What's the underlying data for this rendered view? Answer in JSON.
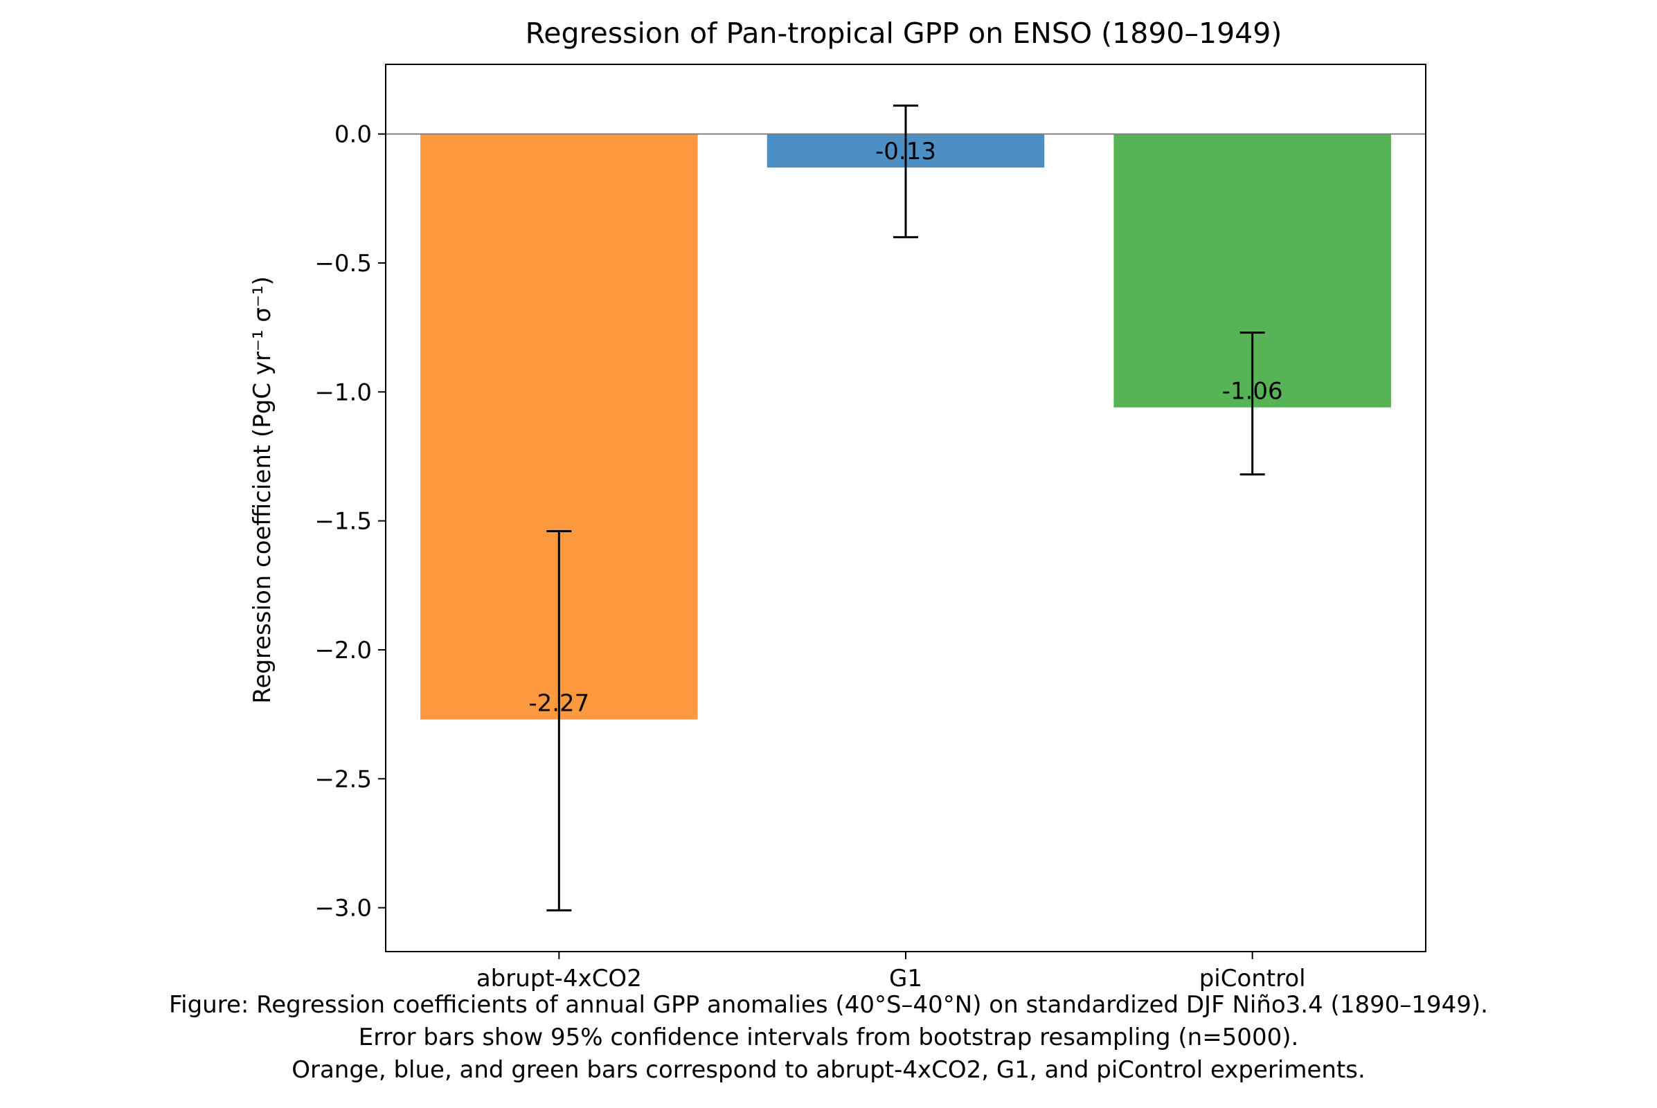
{
  "chart_data": {
    "type": "bar",
    "title": "Regression of Pan-tropical GPP on ENSO (1890–1949)",
    "xlabel": "",
    "ylabel": "Regression coefficient (PgC yr⁻¹ σ⁻¹)",
    "categories": [
      "abrupt-4xCO2",
      "G1",
      "piControl"
    ],
    "values": [
      -2.27,
      -0.13,
      -1.06
    ],
    "error_low": [
      -3.01,
      -0.4,
      -1.32
    ],
    "error_high": [
      -1.54,
      0.11,
      -0.77
    ],
    "value_labels": [
      "-2.27",
      "-0.13",
      "-1.06"
    ],
    "colors": [
      "#ff9940",
      "#4c8fc4",
      "#57b456"
    ],
    "ylim": [
      -3.17,
      0.27
    ],
    "yticks": [
      0.0,
      -0.5,
      -1.0,
      -1.5,
      -2.0,
      -2.5,
      -3.0
    ],
    "ytick_labels": [
      "0.0",
      "−0.5",
      "−1.0",
      "−1.5",
      "−2.0",
      "−2.5",
      "−3.0"
    ],
    "zero_line": true,
    "grid": false,
    "legend": "none"
  },
  "caption": {
    "line1": "Figure: Regression coefficients of annual GPP anomalies (40°S–40°N) on standardized DJF Niño3.4 (1890–1949).",
    "line2": "Error bars show 95% confidence intervals from bootstrap resampling (n=5000).",
    "line3": "Orange, blue, and green bars correspond to abrupt-4xCO2, G1, and piControl experiments."
  }
}
